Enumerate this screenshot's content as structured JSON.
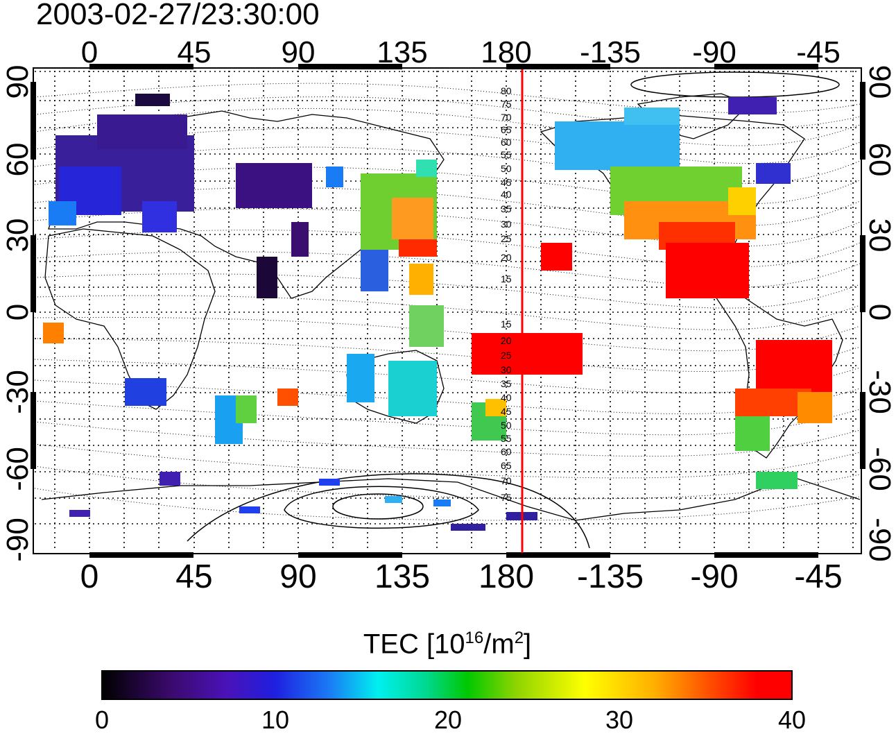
{
  "timestamp": "2003-02-27/23:30:00",
  "x_ticks": [
    "0",
    "45",
    "90",
    "135",
    "180",
    "-135",
    "-90",
    "-45"
  ],
  "y_ticks": [
    "90",
    "60",
    "30",
    "0",
    "-30",
    "-60",
    "-90"
  ],
  "latitude_labels": [
    "80",
    "75",
    "70",
    "65",
    "60",
    "55",
    "50",
    "45",
    "40",
    "35",
    "30",
    "25",
    "20",
    "15",
    "15",
    "20",
    "25",
    "30",
    "35",
    "40",
    "45",
    "50",
    "55",
    "60",
    "65",
    "70",
    "75"
  ],
  "colorbar": {
    "title_prefix": "TEC  [10",
    "title_sup1": "16",
    "title_mid": "/m",
    "title_sup2": "2",
    "title_suffix": "]",
    "ticks": [
      "0",
      "10",
      "20",
      "30",
      "40"
    ],
    "range": [
      0,
      40
    ]
  },
  "colors": {
    "meridian_line": "#ff0000",
    "grid": "#000000"
  }
}
